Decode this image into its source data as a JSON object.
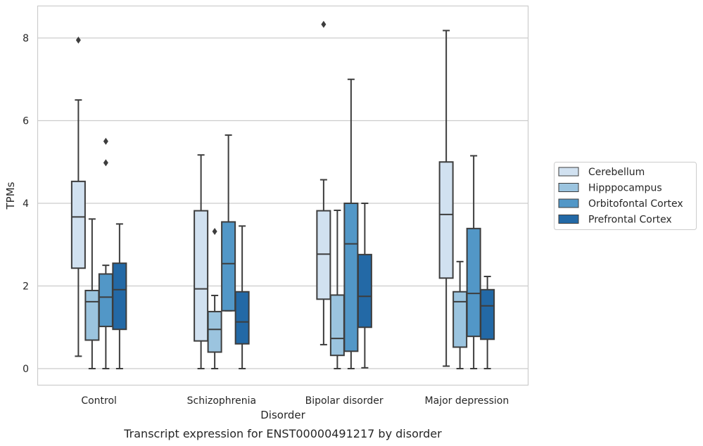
{
  "chart_data": {
    "type": "box",
    "caption": "Transcript expression for ENST00000491217 by disorder",
    "xlabel": "Disorder",
    "ylabel": "TPMs",
    "ylim": [
      -0.4,
      8.75
    ],
    "yticks": [
      0,
      2,
      4,
      6,
      8
    ],
    "grid": "horizontal",
    "legend_position": "right",
    "categories": [
      "Control",
      "Schizophrenia",
      "Bipolar disorder",
      "Major depression"
    ],
    "series": [
      {
        "name": "Cerebellum",
        "color": "#d1e1f0",
        "boxes": [
          {
            "whislo": 0.3,
            "q1": 2.43,
            "med": 3.67,
            "q3": 4.53,
            "whishi": 6.5,
            "fliers": [
              7.95
            ]
          },
          {
            "whislo": 0.0,
            "q1": 0.67,
            "med": 1.93,
            "q3": 3.82,
            "whishi": 5.17,
            "fliers": []
          },
          {
            "whislo": 0.58,
            "q1": 1.68,
            "med": 2.77,
            "q3": 3.82,
            "whishi": 4.57,
            "fliers": [
              8.33
            ]
          },
          {
            "whislo": 0.06,
            "q1": 2.19,
            "med": 3.73,
            "q3": 5.0,
            "whishi": 8.18,
            "fliers": []
          }
        ]
      },
      {
        "name": "Hipppocampus",
        "color": "#9bc4df",
        "boxes": [
          {
            "whislo": 0.0,
            "q1": 0.69,
            "med": 1.62,
            "q3": 1.89,
            "whishi": 3.62,
            "fliers": []
          },
          {
            "whislo": 0.0,
            "q1": 0.4,
            "med": 0.95,
            "q3": 1.38,
            "whishi": 1.77,
            "fliers": [
              3.32
            ]
          },
          {
            "whislo": 0.0,
            "q1": 0.32,
            "med": 0.73,
            "q3": 1.78,
            "whishi": 3.83,
            "fliers": []
          },
          {
            "whislo": 0.0,
            "q1": 0.52,
            "med": 1.62,
            "q3": 1.86,
            "whishi": 2.59,
            "fliers": []
          }
        ]
      },
      {
        "name": "Orbitofontal Cortex",
        "color": "#5297c7",
        "boxes": [
          {
            "whislo": 0.0,
            "q1": 1.02,
            "med": 1.73,
            "q3": 2.29,
            "whishi": 2.5,
            "fliers": [
              4.98,
              5.5
            ]
          },
          {
            "whislo": 1.4,
            "q1": 1.4,
            "med": 2.54,
            "q3": 3.55,
            "whishi": 5.65,
            "fliers": []
          },
          {
            "whislo": 0.0,
            "q1": 0.42,
            "med": 3.02,
            "q3": 4.0,
            "whishi": 7.0,
            "fliers": []
          },
          {
            "whislo": 0.0,
            "q1": 0.78,
            "med": 1.82,
            "q3": 3.39,
            "whishi": 5.15,
            "fliers": []
          }
        ]
      },
      {
        "name": "Prefrontal Cortex",
        "color": "#2369a6",
        "boxes": [
          {
            "whislo": 0.0,
            "q1": 0.95,
            "med": 1.91,
            "q3": 2.55,
            "whishi": 3.5,
            "fliers": []
          },
          {
            "whislo": 0.0,
            "q1": 0.6,
            "med": 1.13,
            "q3": 1.86,
            "whishi": 3.45,
            "fliers": []
          },
          {
            "whislo": 0.02,
            "q1": 1.0,
            "med": 1.75,
            "q3": 2.76,
            "whishi": 4.0,
            "fliers": []
          },
          {
            "whislo": 0.0,
            "q1": 0.71,
            "med": 1.52,
            "q3": 1.91,
            "whishi": 2.23,
            "fliers": []
          }
        ]
      }
    ]
  }
}
